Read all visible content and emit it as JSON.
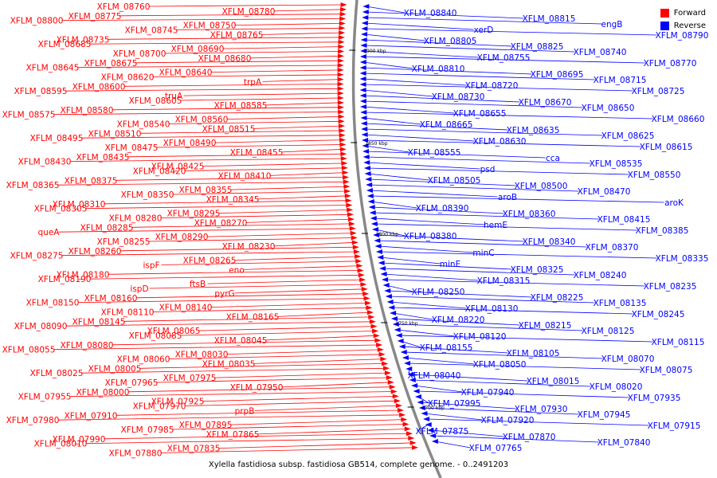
{
  "legend": {
    "forward_label": "Forward",
    "reverse_label": "Reverse",
    "forward_color": "#ff0000",
    "reverse_color": "#0000ff"
  },
  "caption": "Xylella fastidiosa subsp. fastidiosa GB514, complete genome. - 0..2491203",
  "scale_ticks": [
    "1900 kbp",
    "1850 kbp",
    "1800 kbp",
    "1750 kbp",
    "1700 kbp"
  ],
  "forward_labels": [
    "XFLM_08760",
    "XFLM_08780",
    "XFLM_08775",
    "XFLM_08800",
    "XFLM_08750",
    "XFLM_08745",
    "XFLM_08765",
    "XFLM_08735",
    "XFLM_08685",
    "XFLM_08690",
    "XFLM_08700",
    "XFLM_08680",
    "XFLM_08675",
    "XFLM_08645",
    "XFLM_08640",
    "XFLM_08620",
    "trpA",
    "XFLM_08600",
    "XFLM_08595",
    "truA",
    "XFLM_08605",
    "XFLM_08585",
    "XFLM_08580",
    "XFLM_08575",
    "XFLM_08560",
    "XFLM_08540",
    "XFLM_08515",
    "XFLM_08510",
    "XFLM_08495",
    "XFLM_08490",
    "XFLM_08475",
    "XFLM_08455",
    "XFLM_08435",
    "XFLM_08430",
    "XFLM_08425",
    "XFLM_08420",
    "XFLM_08410",
    "XFLM_08375",
    "XFLM_08365",
    "XFLM_08355",
    "XFLM_08350",
    "XFLM_08345",
    "XFLM_08310",
    "XFLM_08305",
    "XFLM_08295",
    "XFLM_08280",
    "XFLM_08270",
    "XFLM_08285",
    "queA",
    "XFLM_08290",
    "XFLM_08255",
    "XFLM_08230",
    "XFLM_08260",
    "XFLM_08275",
    "XFLM_08265",
    "ispF",
    "eno",
    "XFLM_08180",
    "XFLM_08190",
    "ftsB",
    "ispD",
    "pyrG",
    "XFLM_08160",
    "XFLM_08150",
    "XFLM_08140",
    "XFLM_08110",
    "XFLM_08165",
    "XFLM_08145",
    "XFLM_08090",
    "XFLM_08065",
    "XFLM_08085",
    "XFLM_08045",
    "XFLM_08080",
    "XFLM_08055",
    "XFLM_08030",
    "XFLM_08060",
    "XFLM_08035",
    "XFLM_08005",
    "XFLM_08025",
    "XFLM_07975",
    "XFLM_07965",
    "XFLM_07950",
    "XFLM_08000",
    "XFLM_07955",
    "XFLM_07925",
    "XFLM_07970",
    "prpB",
    "XFLM_07910",
    "XFLM_07980",
    "XFLM_07895",
    "XFLM_07985",
    "XFLM_07865",
    "XFLM_07990",
    "XFLM_08010",
    "XFLM_07835",
    "XFLM_07880"
  ],
  "reverse_labels": [
    "XFLM_08840",
    "XFLM_08815",
    "engB",
    "xerD",
    "XFLM_08790",
    "XFLM_08805",
    "XFLM_08825",
    "XFLM_08740",
    "XFLM_08755",
    "XFLM_08770",
    "XFLM_08810",
    "XFLM_08695",
    "XFLM_08715",
    "XFLM_08720",
    "XFLM_08725",
    "XFLM_08730",
    "XFLM_08670",
    "XFLM_08650",
    "XFLM_08655",
    "XFLM_08660",
    "XFLM_08665",
    "XFLM_08635",
    "XFLM_08625",
    "XFLM_08630",
    "XFLM_08615",
    "XFLM_08555",
    "cca",
    "XFLM_08535",
    "psd",
    "XFLM_08550",
    "XFLM_08505",
    "XFLM_08500",
    "XFLM_08470",
    "aroB",
    "aroK",
    "XFLM_08390",
    "XFLM_08360",
    "XFLM_08415",
    "hemE",
    "XFLM_08385",
    "XFLM_08380",
    "XFLM_08340",
    "XFLM_08370",
    "minC",
    "XFLM_08335",
    "minE",
    "XFLM_08325",
    "XFLM_08240",
    "XFLM_08315",
    "XFLM_08235",
    "XFLM_08250",
    "XFLM_08225",
    "XFLM_08135",
    "XFLM_08130",
    "XFLM_08245",
    "XFLM_08220",
    "XFLM_08215",
    "XFLM_08125",
    "XFLM_08120",
    "XFLM_08115",
    "XFLM_08155",
    "XFLM_08105",
    "XFLM_08070",
    "XFLM_08050",
    "XFLM_08075",
    "XFLM_08040",
    "XFLM_08015",
    "XFLM_08020",
    "XFLM_07940",
    "XFLM_07935",
    "XFLM_07995",
    "XFLM_07930",
    "XFLM_07945",
    "XFLM_07920",
    "XFLM_07915",
    "XFLM_07875",
    "XFLM_07870",
    "XFLM_07840",
    "XFLM_07765"
  ]
}
